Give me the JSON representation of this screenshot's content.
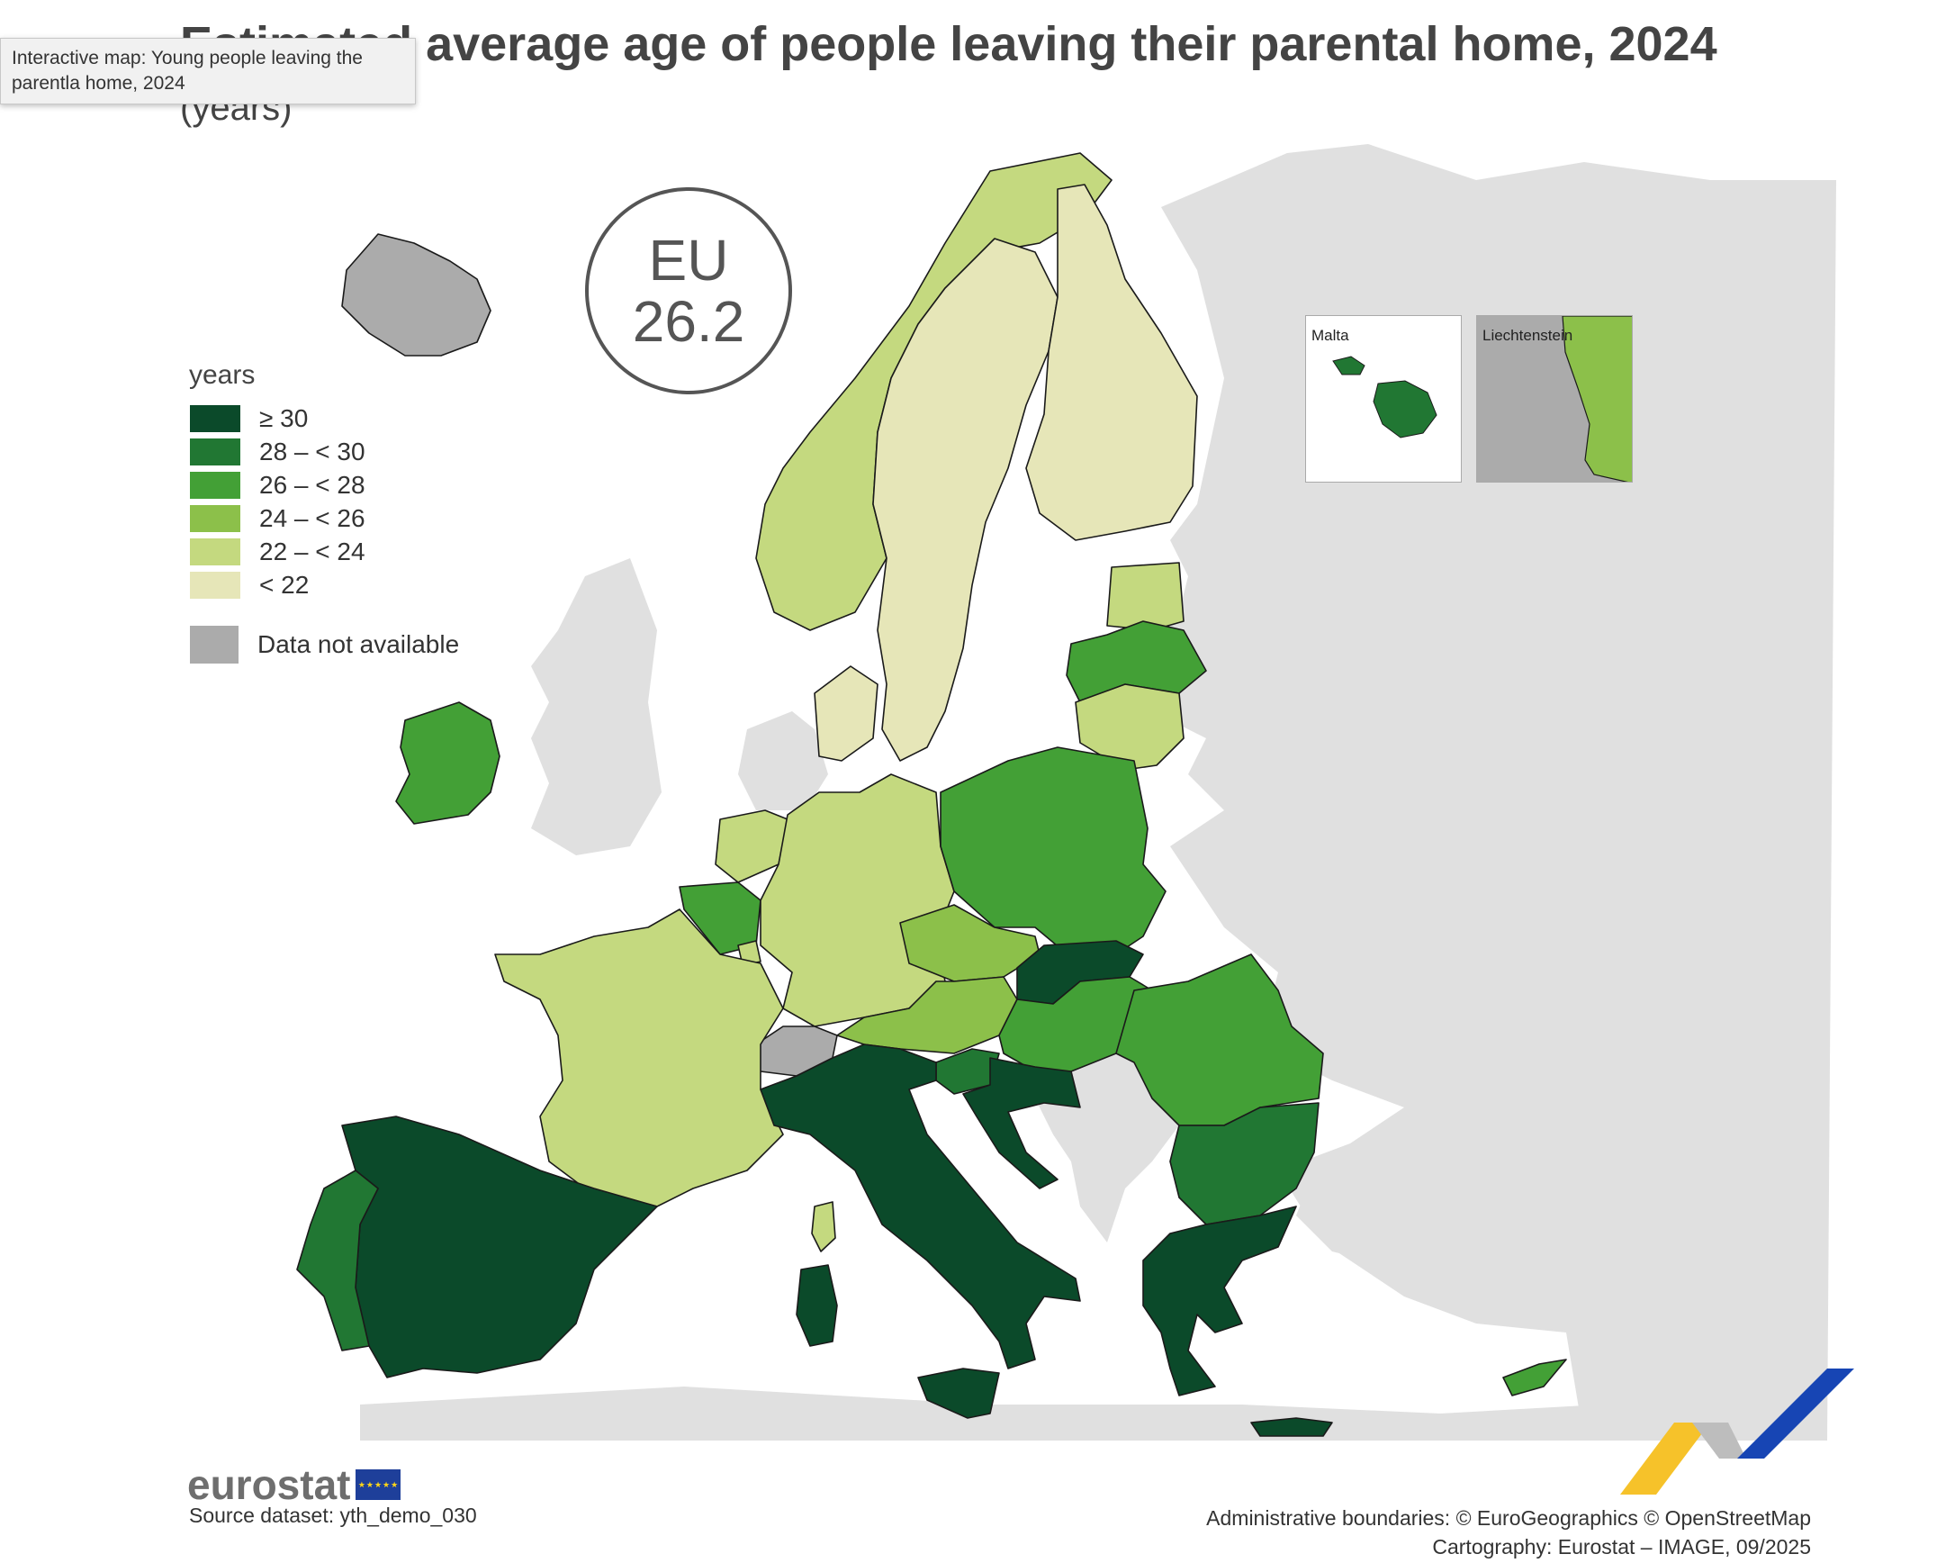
{
  "header": {
    "title": "Estimated average age of people leaving their parental home, 2024",
    "subtitle": "(years)"
  },
  "tooltip": {
    "text": "Interactive map: Young people leaving the parentla home, 2024"
  },
  "eu_badge": {
    "label": "EU",
    "value": "26.2"
  },
  "legend": {
    "title": "years",
    "classes": [
      {
        "label": "≥ 30",
        "color": "#0b4a2a"
      },
      {
        "label": "28 – < 30",
        "color": "#217733"
      },
      {
        "label": "26 – < 28",
        "color": "#43a036"
      },
      {
        "label": "24 – < 26",
        "color": "#8cc04a"
      },
      {
        "label": "22 – < 24",
        "color": "#c4d97f"
      },
      {
        "label": "< 22",
        "color": "#e6e6b8"
      }
    ],
    "na_label": "Data not available",
    "na_color": "#ababab"
  },
  "insets": {
    "malta": {
      "label": "Malta"
    },
    "liechtenstein": {
      "label": "Liechtenstein"
    }
  },
  "colors": {
    "non_eu": "#e0e0e0",
    "sea": "#ffffff"
  },
  "footer": {
    "logo": "eurostat",
    "source": "Source dataset: yth_demo_030",
    "boundaries": "Administrative boundaries: © EuroGeographics © OpenStreetMap",
    "cartography": "Cartography: Eurostat – IMAGE, 09/2025"
  },
  "map_data": {
    "countries": [
      {
        "name": "Spain",
        "class": "≥ 30"
      },
      {
        "name": "Italy",
        "class": "≥ 30"
      },
      {
        "name": "Greece",
        "class": "≥ 30"
      },
      {
        "name": "Slovakia",
        "class": "≥ 30"
      },
      {
        "name": "Croatia",
        "class": "≥ 30"
      },
      {
        "name": "Portugal",
        "class": "28 – < 30"
      },
      {
        "name": "Slovenia",
        "class": "28 – < 30"
      },
      {
        "name": "Bulgaria",
        "class": "28 – < 30"
      },
      {
        "name": "Malta",
        "class": "28 – < 30"
      },
      {
        "name": "Ireland",
        "class": "26 – < 28"
      },
      {
        "name": "Poland",
        "class": "26 – < 28"
      },
      {
        "name": "Romania",
        "class": "26 – < 28"
      },
      {
        "name": "Hungary",
        "class": "26 – < 28"
      },
      {
        "name": "Belgium",
        "class": "26 – < 28"
      },
      {
        "name": "Latvia",
        "class": "26 – < 28"
      },
      {
        "name": "Cyprus",
        "class": "26 – < 28"
      },
      {
        "name": "Czechia",
        "class": "24 – < 26"
      },
      {
        "name": "Austria",
        "class": "24 – < 26"
      },
      {
        "name": "Liechtenstein",
        "class": "24 – < 26"
      },
      {
        "name": "France",
        "class": "22 – < 24"
      },
      {
        "name": "Germany",
        "class": "22 – < 24"
      },
      {
        "name": "Netherlands",
        "class": "22 – < 24"
      },
      {
        "name": "Luxembourg",
        "class": "22 – < 24"
      },
      {
        "name": "Norway",
        "class": "22 – < 24"
      },
      {
        "name": "Estonia",
        "class": "22 – < 24"
      },
      {
        "name": "Lithuania",
        "class": "22 – < 24"
      },
      {
        "name": "Sweden",
        "class": "< 22"
      },
      {
        "name": "Finland",
        "class": "< 22"
      },
      {
        "name": "Denmark",
        "class": "< 22"
      },
      {
        "name": "Switzerland",
        "class": "Data not available"
      },
      {
        "name": "Iceland",
        "class": "Data not available"
      }
    ]
  }
}
